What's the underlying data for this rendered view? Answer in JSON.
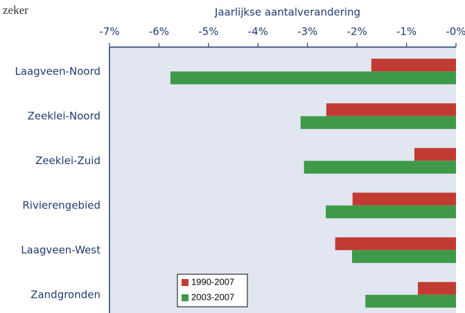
{
  "chart_data": {
    "type": "hbar",
    "annotation": "zeker",
    "title": "Jaarlijkse aantalverandering",
    "categories": [
      "Laagveen-Noord",
      "Zeeklei-Noord",
      "Zeeklei-Zuid",
      "Rivierengebied",
      "Laagveen-West",
      "Zandgronden"
    ],
    "series": [
      {
        "name": "1990-2007",
        "color": "#c23b32",
        "values": [
          -1.71,
          -2.62,
          -0.84,
          -2.09,
          -2.44,
          -0.77
        ]
      },
      {
        "name": "2003-2007",
        "color": "#3e9a48",
        "values": [
          -5.77,
          -3.14,
          -3.07,
          -2.63,
          -2.1,
          -1.83
        ]
      }
    ],
    "xlim": [
      -7,
      0
    ],
    "xticks": [
      {
        "value": -7,
        "label": "-7%"
      },
      {
        "value": -6,
        "label": "-6%"
      },
      {
        "value": -5,
        "label": "-5%"
      },
      {
        "value": -4,
        "label": "-4%"
      },
      {
        "value": -3,
        "label": "-3%"
      },
      {
        "value": -2,
        "label": "-2%"
      },
      {
        "value": -1,
        "label": "-1%"
      },
      {
        "value": 0,
        "label": "-0%"
      }
    ],
    "legend": "lower-left"
  }
}
